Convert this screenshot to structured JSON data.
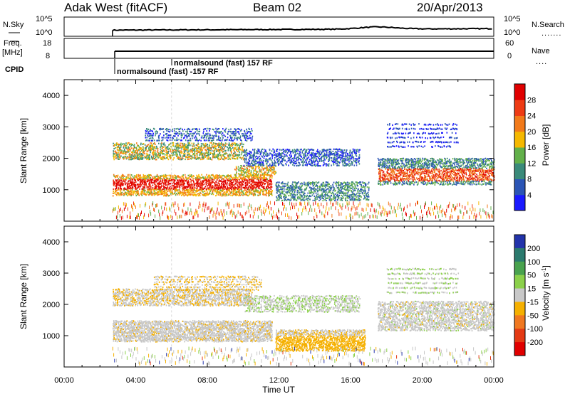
{
  "header": {
    "title_left": "Adak West (fitACF)",
    "title_center": "Beam 02",
    "title_right": "20/Apr/2013"
  },
  "top_panels": {
    "noise": {
      "left_label": "N.Sky",
      "right_label": "N.Search",
      "left_ticks": [
        "10^5",
        "10^0"
      ],
      "right_ticks": [
        "10^5",
        "10^0"
      ]
    },
    "freq": {
      "left_label_1": "Freq.",
      "left_label_2": "[MHz]",
      "right_label": "Nave",
      "left_ticks": [
        "18",
        "8"
      ],
      "right_ticks": [
        "60",
        "0"
      ]
    },
    "cpid": {
      "label": "CPID",
      "annotation_1": "normalsound (fast) 157 RF",
      "annotation_2": "normalsound (fast) -157 RF"
    }
  },
  "panels": {
    "power": {
      "ylabel": "Slant Range [km]",
      "yticks": [
        "1000",
        "2000",
        "3000",
        "4000"
      ],
      "colorbar_label": "Power [dB]",
      "colorbar_ticks": [
        "4",
        "8",
        "12",
        "16",
        "20",
        "24",
        "28"
      ],
      "colors": [
        "#1a1aff",
        "#2b55b5",
        "#3a8a7a",
        "#62b04a",
        "#f5b800",
        "#f27a1a",
        "#ee3b14",
        "#e00000"
      ]
    },
    "velocity": {
      "ylabel": "Slant Range [km]",
      "yticks": [
        "1000",
        "2000",
        "3000",
        "4000"
      ],
      "colorbar_label": "Velocity [m s",
      "colorbar_label_sup": "-1",
      "colorbar_label_end": "]",
      "colorbar_ticks": [
        "200",
        "100",
        "50",
        "15",
        "-15",
        "-50",
        "-100",
        "-200"
      ],
      "colors": [
        "#2233aa",
        "#2b7a6e",
        "#49a24e",
        "#8bd04a",
        "#c8c8c8",
        "#f5b000",
        "#f07820",
        "#e43a14",
        "#e00000"
      ]
    }
  },
  "xaxis": {
    "ticks": [
      "00:00",
      "04:00",
      "08:00",
      "12:00",
      "16:00",
      "20:00",
      "00:00"
    ],
    "label": "Time UT"
  },
  "chart_data": {
    "type": "heatmap",
    "title": "Adak West (fitACF)  Beam 02  20/Apr/2013",
    "xlabel": "Time UT",
    "x_range_hours": [
      0,
      24
    ],
    "panels": [
      {
        "name": "Power",
        "ylabel": "Slant Range [km]",
        "ylim_km": [
          0,
          4500
        ],
        "colorbar_label": "Power [dB]",
        "colorbar_range": [
          0,
          32
        ],
        "data_start_hour": 2.7,
        "features": [
          {
            "desc": "main band",
            "t": [
              2.7,
              11.5
            ],
            "range_km": [
              900,
              1500
            ],
            "power_db": 24
          },
          {
            "desc": "upper band",
            "t": [
              2.7,
              12.0
            ],
            "range_km": [
              2000,
              2500
            ],
            "power_db": 18
          },
          {
            "desc": "evening band",
            "t": [
              17.5,
              24.0
            ],
            "range_km": [
              1200,
              2100
            ],
            "power_db": 22
          },
          {
            "desc": "low band",
            "t": [
              12.0,
              17.0
            ],
            "range_km": [
              700,
              1300
            ],
            "power_db": 12
          }
        ]
      },
      {
        "name": "Velocity",
        "ylabel": "Slant Range [km]",
        "ylim_km": [
          0,
          4500
        ],
        "colorbar_label": "Velocity [m s-1]",
        "colorbar_range": [
          -250,
          250
        ],
        "data_start_hour": 2.7,
        "features": [
          {
            "desc": "ground scatter",
            "t": [
              2.7,
              11.5
            ],
            "range_km": [
              900,
              1500
            ],
            "velocity": 0
          },
          {
            "desc": "negative velocity patch",
            "t": [
              12.0,
              17.0
            ],
            "range_km": [
              500,
              1300
            ],
            "velocity": -50
          }
        ]
      }
    ]
  }
}
